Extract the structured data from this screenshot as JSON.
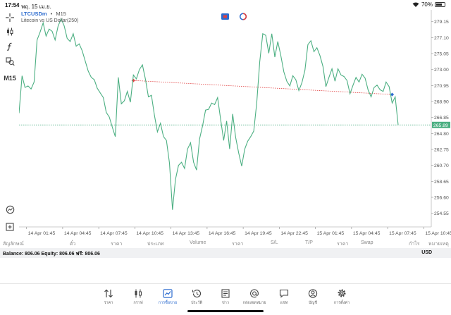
{
  "status_bar": {
    "time": "17:54",
    "date": "พฤ. 15 เม.ย.",
    "battery": "70%",
    "battery_level": 0.7
  },
  "left_toolbar": {
    "tools": [
      "crosshair-icon",
      "candles-icon",
      "function-icon",
      "objects-icon"
    ],
    "timeframe": "M15",
    "bottom_tools": [
      "zoom-icon",
      "add-icon"
    ]
  },
  "chart_header": {
    "symbol": "LTCUSDm",
    "separator": "•",
    "timeframe": "M15",
    "description": "Litecoin vs US Dollar(250)"
  },
  "colors": {
    "line": "#4caf82",
    "current_price_bg": "#4caf82",
    "trend_line": "#e04040",
    "bid_line": "#4caf82",
    "grid": "#e4e4e4",
    "icon_blue": "#2d6ccf",
    "icon_red": "#e04040"
  },
  "chart_data": {
    "type": "line",
    "title": "",
    "xlabel": "",
    "ylabel": "",
    "ylim": [
      252.8,
      280.3
    ],
    "grid": true,
    "y_ticks": [
      "279.15",
      "277.10",
      "275.05",
      "273.00",
      "270.95",
      "268.90",
      "266.85",
      "264.80",
      "262.75",
      "260.70",
      "258.65",
      "256.60",
      "254.55"
    ],
    "x_ticks": [
      {
        "label": "14 Apr 01:45",
        "x": 2.5
      },
      {
        "label": "14 Apr 04:45",
        "x": 14.5
      },
      {
        "label": "14 Apr 07:45",
        "x": 26.5
      },
      {
        "label": "14 Apr 10:45",
        "x": 38.5
      },
      {
        "label": "14 Apr 13:45",
        "x": 50.5
      },
      {
        "label": "14 Apr 16:45",
        "x": 62.5
      },
      {
        "label": "14 Apr 19:45",
        "x": 74.5
      },
      {
        "label": "14 Apr 22:45",
        "x": 86.5
      },
      {
        "label": "15 Apr 01:45",
        "x": 98.5
      },
      {
        "label": "15 Apr 04:45",
        "x": 110.5
      },
      {
        "label": "15 Apr 07:45",
        "x": 122.5
      },
      {
        "label": "15 Apr 10:45",
        "x": 134.5
      }
    ],
    "x_range": [
      0,
      137
    ],
    "current_price": "265.89",
    "current_price_value": 265.89,
    "series": [
      {
        "values": [
          [
            0,
            267.4
          ],
          [
            1,
            272.2
          ],
          [
            2,
            270.7
          ],
          [
            3,
            270.9
          ],
          [
            4,
            270.5
          ],
          [
            5,
            271.4
          ],
          [
            6,
            276.8
          ],
          [
            7,
            277.8
          ],
          [
            8,
            279.0
          ],
          [
            9,
            277.3
          ],
          [
            10,
            278.2
          ],
          [
            11,
            277.9
          ],
          [
            12,
            276.8
          ],
          [
            13,
            278.6
          ],
          [
            14,
            279.5
          ],
          [
            15,
            278.6
          ],
          [
            16,
            277.0
          ],
          [
            17,
            276.6
          ],
          [
            18,
            277.6
          ],
          [
            19,
            276.0
          ],
          [
            20,
            276.3
          ],
          [
            21,
            275.4
          ],
          [
            22,
            274.1
          ],
          [
            23,
            272.8
          ],
          [
            24,
            272.0
          ],
          [
            25,
            271.7
          ],
          [
            26,
            270.6
          ],
          [
            27,
            270.0
          ],
          [
            28,
            269.4
          ],
          [
            29,
            267.5
          ],
          [
            30,
            266.9
          ],
          [
            31,
            265.6
          ],
          [
            32,
            264.4
          ],
          [
            33,
            272.0
          ],
          [
            34,
            268.6
          ],
          [
            35,
            269.0
          ],
          [
            36,
            270.2
          ],
          [
            37,
            268.8
          ],
          [
            38,
            272.3
          ],
          [
            39,
            271.8
          ],
          [
            40,
            273.0
          ],
          [
            41,
            273.6
          ],
          [
            42,
            271.8
          ],
          [
            43,
            269.5
          ],
          [
            44,
            269.7
          ],
          [
            45,
            267.1
          ],
          [
            46,
            265.0
          ],
          [
            47,
            266.1
          ],
          [
            48,
            264.4
          ],
          [
            49,
            263.9
          ],
          [
            50,
            261.0
          ],
          [
            51,
            255.0
          ],
          [
            52,
            258.9
          ],
          [
            53,
            260.7
          ],
          [
            54,
            261.1
          ],
          [
            55,
            260.3
          ],
          [
            56,
            262.8
          ],
          [
            57,
            263.6
          ],
          [
            58,
            261.1
          ],
          [
            59,
            260.1
          ],
          [
            60,
            264.1
          ],
          [
            61,
            265.8
          ],
          [
            62,
            267.8
          ],
          [
            63,
            267.9
          ],
          [
            64,
            268.7
          ],
          [
            65,
            268.5
          ],
          [
            66,
            269.4
          ],
          [
            67,
            266.6
          ],
          [
            68,
            263.9
          ],
          [
            69,
            266.4
          ],
          [
            70,
            262.8
          ],
          [
            71,
            267.3
          ],
          [
            72,
            264.3
          ],
          [
            73,
            262.3
          ],
          [
            74,
            260.6
          ],
          [
            75,
            262.8
          ],
          [
            76,
            263.8
          ],
          [
            77,
            264.4
          ],
          [
            78,
            265.1
          ],
          [
            79,
            268.7
          ],
          [
            80,
            274.0
          ],
          [
            81,
            277.6
          ],
          [
            82,
            277.4
          ],
          [
            83,
            275.1
          ],
          [
            84,
            277.6
          ],
          [
            85,
            274.6
          ],
          [
            86,
            276.6
          ],
          [
            87,
            274.8
          ],
          [
            88,
            272.7
          ],
          [
            89,
            271.5
          ],
          [
            90,
            270.9
          ],
          [
            91,
            272.2
          ],
          [
            92,
            271.7
          ],
          [
            93,
            270.3
          ],
          [
            94,
            271.3
          ],
          [
            95,
            272.9
          ],
          [
            96,
            276.2
          ],
          [
            97,
            276.7
          ],
          [
            98,
            275.3
          ],
          [
            99,
            275.8
          ],
          [
            100,
            274.8
          ],
          [
            101,
            273.4
          ],
          [
            102,
            270.8
          ],
          [
            103,
            272.0
          ],
          [
            104,
            273.1
          ],
          [
            105,
            271.5
          ],
          [
            106,
            273.1
          ],
          [
            107,
            272.3
          ],
          [
            108,
            272.1
          ],
          [
            109,
            271.6
          ],
          [
            110,
            269.9
          ],
          [
            111,
            271.0
          ],
          [
            112,
            272.0
          ],
          [
            113,
            271.4
          ],
          [
            114,
            272.4
          ],
          [
            115,
            271.9
          ],
          [
            116,
            270.4
          ],
          [
            117,
            269.5
          ],
          [
            118,
            270.7
          ],
          [
            119,
            271.0
          ],
          [
            120,
            270.4
          ],
          [
            121,
            270.2
          ],
          [
            122,
            271.4
          ],
          [
            123,
            270.8
          ],
          [
            124,
            268.7
          ],
          [
            125,
            269.5
          ],
          [
            126,
            265.9
          ]
        ]
      }
    ],
    "trend_line": [
      [
        38,
        271.6
      ],
      [
        124,
        269.8
      ]
    ]
  },
  "table_header": {
    "columns": [
      "สัญลักษณ์",
      "ตั๋ว",
      "ราคา",
      "ประเภท",
      "Volume",
      "ราคา",
      "S/L",
      "T/P",
      "ราคา",
      "Swap",
      "กำไร",
      "หมายเหตุ"
    ]
  },
  "balance": {
    "text": "Balance: 806.06 Equity: 806.06 ฟรี: 806.06",
    "currency": "USD"
  },
  "bottom_nav": {
    "items": [
      {
        "label": "ราคา",
        "icon": "quotes-icon"
      },
      {
        "label": "กราฟ",
        "icon": "chart-icon"
      },
      {
        "label": "การซื้อขาย",
        "icon": "trade-icon"
      },
      {
        "label": "ประวัติ",
        "icon": "history-icon"
      },
      {
        "label": "ข่าว",
        "icon": "news-icon"
      },
      {
        "label": "กล่องจดหมาย",
        "icon": "mailbox-icon"
      },
      {
        "label": "แชท",
        "icon": "chat-icon"
      },
      {
        "label": "บัญชี",
        "icon": "account-icon"
      },
      {
        "label": "การตั้งค่า",
        "icon": "settings-icon"
      }
    ],
    "active_index": 2
  }
}
